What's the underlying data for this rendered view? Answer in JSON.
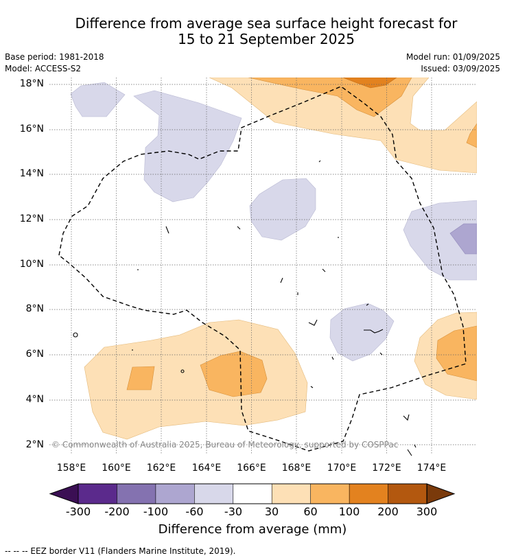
{
  "title": {
    "line1": "Difference from average sea surface height forecast for",
    "line2": "15 to 21 September 2025"
  },
  "meta": {
    "base_period": "Base period: 1981-2018",
    "model": "Model: ACCESS-S2",
    "model_run": "Model run: 01/09/2025",
    "issued": "Issued: 03/09/2025"
  },
  "map": {
    "lat_labels": [
      "18°N",
      "16°N",
      "14°N",
      "12°N",
      "10°N",
      "8°N",
      "6°N",
      "4°N",
      "2°N"
    ],
    "lon_labels": [
      "158°E",
      "160°E",
      "162°E",
      "164°E",
      "166°E",
      "168°E",
      "170°E",
      "172°E",
      "174°E"
    ],
    "lon_range": [
      157,
      176
    ],
    "lat_range": [
      1.5,
      18.2
    ],
    "grid": "dotted",
    "copyright": "© Commonwealth of Australia 2025, Bureau of Meteorology, supported by COSPPac"
  },
  "colorbar": {
    "tick_labels": [
      "-300",
      "-200",
      "-100",
      "-60",
      "-30",
      "30",
      "60",
      "100",
      "200",
      "300"
    ],
    "colors": [
      "#3b0f54",
      "#5b2a8c",
      "#8472b0",
      "#ada6d0",
      "#d8d8ea",
      "#ffffff",
      "#fde0b6",
      "#f9b560",
      "#e3821f",
      "#b3580f",
      "#7a3a0b"
    ],
    "title": "Difference from average (mm)"
  },
  "footnote": "--  --  -- EEZ border V11 (Flanders Marine Institute, 2019)."
}
